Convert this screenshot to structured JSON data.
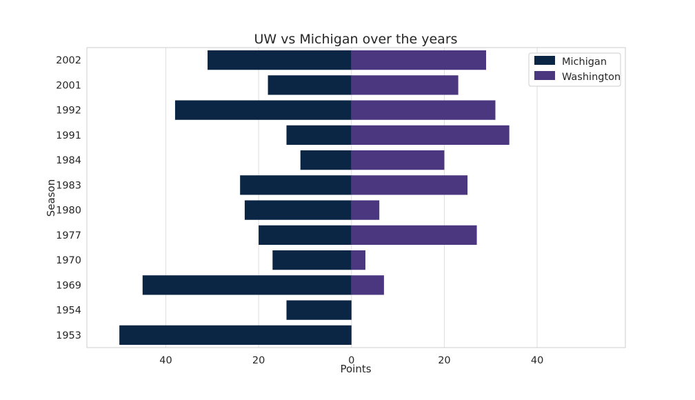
{
  "chart_data": {
    "type": "bar",
    "orientation": "horizontal",
    "diverging": true,
    "title": "UW vs Michigan over the years",
    "xlabel": "Points",
    "ylabel": "Season",
    "xlim": [
      -57,
      59
    ],
    "xticks": [
      -40,
      -20,
      0,
      20,
      40
    ],
    "xtick_labels": [
      "40",
      "20",
      "0",
      "20",
      "40"
    ],
    "grid": true,
    "legend_position": "top-right",
    "categories": [
      "2002",
      "2001",
      "1992",
      "1991",
      "1984",
      "1983",
      "1980",
      "1977",
      "1970",
      "1969",
      "1954",
      "1953"
    ],
    "series": [
      {
        "name": "Michigan",
        "color": "#0b2545",
        "values": [
          31,
          18,
          38,
          14,
          11,
          24,
          23,
          20,
          17,
          45,
          14,
          50
        ]
      },
      {
        "name": "Washington",
        "color": "#4b3680",
        "values": [
          29,
          23,
          31,
          34,
          20,
          25,
          6,
          27,
          3,
          7,
          0,
          0
        ]
      }
    ]
  }
}
